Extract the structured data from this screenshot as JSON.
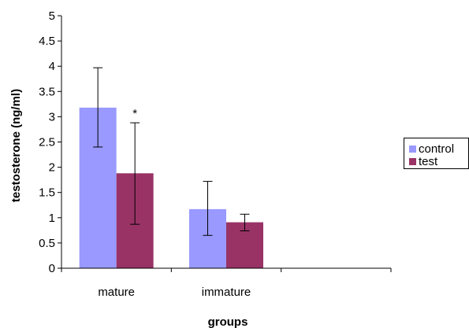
{
  "chart_data": {
    "type": "bar",
    "title": "",
    "xlabel": "groups",
    "ylabel": "testosterone (ng/ml)",
    "ylim": [
      0,
      5
    ],
    "yticks": [
      "0",
      "0.5",
      "1",
      "1.5",
      "2",
      "2.5",
      "3",
      "3.5",
      "4",
      "4.5",
      "5"
    ],
    "categories": [
      "mature",
      "immature",
      ""
    ],
    "grid": false,
    "legend_position": "right",
    "series": [
      {
        "name": "control",
        "color": "#9999ff",
        "values": [
          3.18,
          1.17,
          null
        ],
        "error_low": [
          2.4,
          0.65,
          null
        ],
        "error_high": [
          3.97,
          1.72,
          null
        ]
      },
      {
        "name": "test",
        "color": "#993366",
        "values": [
          1.88,
          0.91,
          null
        ],
        "error_low": [
          0.87,
          0.74,
          null
        ],
        "error_high": [
          2.88,
          1.07,
          null
        ]
      }
    ],
    "annotations": [
      {
        "text": "*",
        "category": 0,
        "series": 1,
        "y": 2.88
      }
    ]
  }
}
